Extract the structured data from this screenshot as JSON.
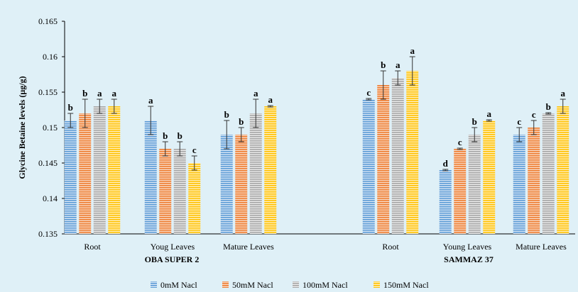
{
  "chart_data": {
    "type": "bar",
    "ylabel": "Glycine Betaine levels (µg/g)",
    "ylim": [
      0.135,
      0.165
    ],
    "yticks": [
      "0.135",
      "0.14",
      "0.145",
      "0.15",
      "0.155",
      "0.16",
      "0.165"
    ],
    "ytick_values": [
      0.135,
      0.14,
      0.145,
      0.15,
      0.155,
      0.16,
      0.165
    ],
    "grid": false,
    "legend_position": "bottom",
    "colors": [
      "#5b9bd5",
      "#ed7d31",
      "#a5a5a5",
      "#ffc000"
    ],
    "series": [
      {
        "name": "0mM Nacl"
      },
      {
        "name": "50mM Nacl"
      },
      {
        "name": "100mM Nacl"
      },
      {
        "name": "150mM Nacl"
      }
    ],
    "groups": [
      {
        "name": "OBA SUPER 2",
        "categories": [
          {
            "label": "Root",
            "values": [
              0.151,
              0.152,
              0.153,
              0.153
            ],
            "errors": [
              0.001,
              0.002,
              0.001,
              0.001
            ],
            "letters": [
              "b",
              "b",
              "a",
              "a"
            ]
          },
          {
            "label": "Youg Leaves",
            "values": [
              0.151,
              0.147,
              0.147,
              0.145
            ],
            "errors": [
              0.002,
              0.001,
              0.001,
              0.001
            ],
            "letters": [
              "a",
              "b",
              "b",
              "c"
            ]
          },
          {
            "label": "Mature Leaves",
            "values": [
              0.149,
              0.149,
              0.152,
              0.153
            ],
            "errors": [
              0.002,
              0.001,
              0.002,
              0.0001
            ],
            "letters": [
              "b",
              "b",
              "a",
              "a"
            ]
          }
        ]
      },
      {
        "name": "SAMMAZ 37",
        "categories": [
          {
            "label": "Root",
            "values": [
              0.154,
              0.156,
              0.157,
              0.158
            ],
            "errors": [
              0.0001,
              0.002,
              0.001,
              0.002
            ],
            "letters": [
              "c",
              "b",
              "a",
              "a"
            ]
          },
          {
            "label": "Young Leaves",
            "values": [
              0.144,
              0.147,
              0.149,
              0.151
            ],
            "errors": [
              0.0001,
              0.0001,
              0.001,
              0.0001
            ],
            "letters": [
              "d",
              "c",
              "b",
              "a"
            ]
          },
          {
            "label": "Mature Leaves",
            "values": [
              0.149,
              0.15,
              0.152,
              0.153
            ],
            "errors": [
              0.001,
              0.001,
              0.0001,
              0.001
            ],
            "letters": [
              "c",
              "c",
              "b",
              "a"
            ]
          }
        ]
      }
    ]
  }
}
